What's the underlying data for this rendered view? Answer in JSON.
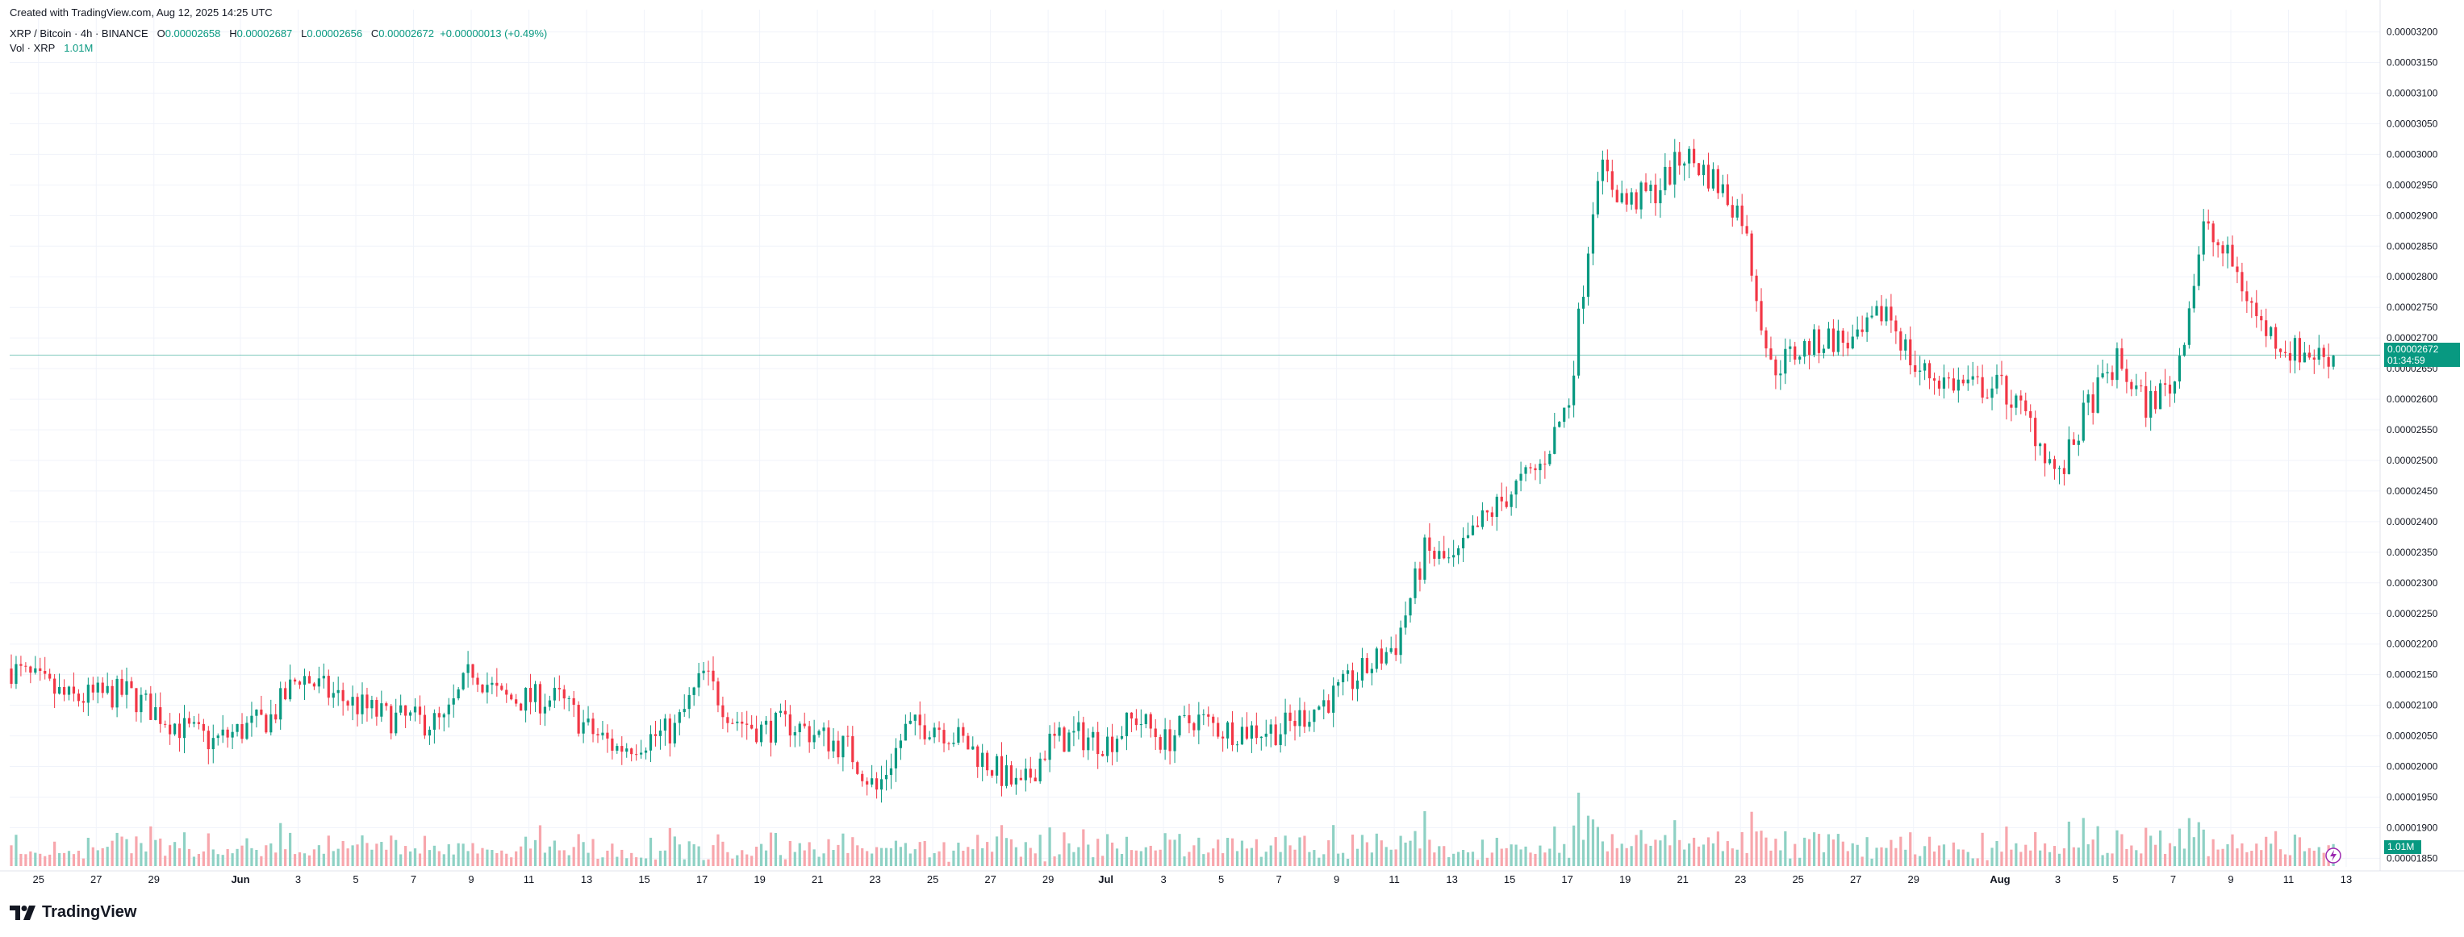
{
  "header": {
    "created": "Created with TradingView.com, Aug 12, 2025 14:25 UTC",
    "symbol": "XRP / Bitcoin · 4h · BINANCE",
    "o_label": "O",
    "o_value": "0.00002658",
    "h_label": "H",
    "h_value": "0.00002687",
    "l_label": "L",
    "l_value": "0.00002656",
    "c_label": "C",
    "c_value": "0.00002672",
    "change": "+0.00000013 (+0.49%)",
    "vol_label": "Vol · XRP",
    "vol_value": "1.01M"
  },
  "logo_text": "TradingView",
  "price_tag": {
    "price": "0.00002672",
    "countdown": "01:34:59"
  },
  "vol_tag": "1.01M",
  "colors": {
    "up": "#089981",
    "down": "#F23645",
    "vol_up": "#8ED1C4",
    "vol_down": "#F7A6AC",
    "grid": "#F0F3FA",
    "text": "#131722"
  },
  "chart_data": {
    "type": "candlestick",
    "title": "XRP / Bitcoin · 4h · BINANCE",
    "y_axis_ticks": [
      "0.00001850",
      "0.00001900",
      "0.00001950",
      "0.00002000",
      "0.00002050",
      "0.00002100",
      "0.00002150",
      "0.00002200",
      "0.00002250",
      "0.00002300",
      "0.00002350",
      "0.00002400",
      "0.00002450",
      "0.00002500",
      "0.00002550",
      "0.00002600",
      "0.00002650",
      "0.00002700",
      "0.00002750",
      "0.00002800",
      "0.00002850",
      "0.00002900",
      "0.00002950",
      "0.00003000",
      "0.00003050",
      "0.00003100",
      "0.00003150",
      "0.00003200"
    ],
    "x_axis_ticks": [
      "25",
      "27",
      "29",
      "Jun",
      "3",
      "5",
      "7",
      "9",
      "11",
      "13",
      "15",
      "17",
      "19",
      "21",
      "23",
      "25",
      "27",
      "29",
      "Jul",
      "3",
      "5",
      "7",
      "9",
      "11",
      "13",
      "15",
      "17",
      "19",
      "21",
      "23",
      "25",
      "27",
      "29",
      "Aug",
      "3",
      "5",
      "7",
      "9",
      "11",
      "13"
    ],
    "ylim": [
      1.84e-05,
      3.21e-05
    ],
    "last_price": 2.672e-05,
    "close_path": [
      [
        "May 24",
        2.16e-05
      ],
      [
        "May 26",
        2.11e-05
      ],
      [
        "May 28",
        2.12e-05
      ],
      [
        "May 30",
        2.06e-05
      ],
      [
        "May 31",
        2.04e-05
      ],
      [
        "Jun 2",
        2.08e-05
      ],
      [
        "Jun 3",
        2.15e-05
      ],
      [
        "Jun 4",
        2.12e-05
      ],
      [
        "Jun 6",
        2.08e-05
      ],
      [
        "Jun 8",
        2.07e-05
      ],
      [
        "Jun 9",
        2.16e-05
      ],
      [
        "Jun 10",
        2.11e-05
      ],
      [
        "Jun 12",
        2.11e-05
      ],
      [
        "Jun 13",
        2.06e-05
      ],
      [
        "Jun 14",
        2.03e-05
      ],
      [
        "Jun 16",
        2.06e-05
      ],
      [
        "Jun 17",
        2.15e-05
      ],
      [
        "Jun 18",
        2.08e-05
      ],
      [
        "Jun 19",
        2.06e-05
      ],
      [
        "Jun 20",
        2.07e-05
      ],
      [
        "Jun 22",
        2.03e-05
      ],
      [
        "Jun 23",
        1.96e-05
      ],
      [
        "Jun 24",
        2.06e-05
      ],
      [
        "Jun 25",
        2.07e-05
      ],
      [
        "Jun 26",
        2.04e-05
      ],
      [
        "Jun 27",
        2e-05
      ],
      [
        "Jun 28",
        1.96e-05
      ],
      [
        "Jun 29",
        2.04e-05
      ],
      [
        "Jun 30",
        2.05e-05
      ],
      [
        "Jul 1",
        2.04e-05
      ],
      [
        "Jul 2",
        2.08e-05
      ],
      [
        "Jul 3",
        2.04e-05
      ],
      [
        "Jul 4",
        2.08e-05
      ],
      [
        "Jul 5",
        2.06e-05
      ],
      [
        "Jul 7",
        2.06e-05
      ],
      [
        "Jul 8",
        2.09e-05
      ],
      [
        "Jul 9",
        2.12e-05
      ],
      [
        "Jul 10",
        2.16e-05
      ],
      [
        "Jul 11",
        2.2e-05
      ],
      [
        "Jul 12",
        2.35e-05
      ],
      [
        "Jul 13",
        2.33e-05
      ],
      [
        "Jul 14",
        2.4e-05
      ],
      [
        "Jul 15",
        2.45e-05
      ],
      [
        "Jul 16",
        2.49e-05
      ],
      [
        "Jul 17",
        2.6e-05
      ],
      [
        "Jul 18",
        2.98e-05
      ],
      [
        "Jul 19",
        2.92e-05
      ],
      [
        "Jul 20",
        2.94e-05
      ],
      [
        "Jul 21",
        3e-05
      ],
      [
        "Jul 22",
        2.96e-05
      ],
      [
        "Jul 23",
        2.9e-05
      ],
      [
        "Jul 24",
        2.65e-05
      ],
      [
        "Jul 25",
        2.68e-05
      ],
      [
        "Jul 26",
        2.7e-05
      ],
      [
        "Jul 27",
        2.69e-05
      ],
      [
        "Jul 28",
        2.75e-05
      ],
      [
        "Jul 29",
        2.65e-05
      ],
      [
        "Jul 30",
        2.63e-05
      ],
      [
        "Jul 31",
        2.62e-05
      ],
      [
        "Aug 1",
        2.62e-05
      ],
      [
        "Aug 2",
        2.56e-05
      ],
      [
        "Aug 3",
        2.47e-05
      ],
      [
        "Aug 4",
        2.59e-05
      ],
      [
        "Aug 5",
        2.66e-05
      ],
      [
        "Aug 6",
        2.59e-05
      ],
      [
        "Aug 7",
        2.63e-05
      ],
      [
        "Aug 8",
        2.88e-05
      ],
      [
        "Aug 9",
        2.82e-05
      ],
      [
        "Aug 10",
        2.72e-05
      ],
      [
        "Aug 11",
        2.68e-05
      ],
      [
        "Aug 12",
        2.672e-05
      ]
    ]
  }
}
